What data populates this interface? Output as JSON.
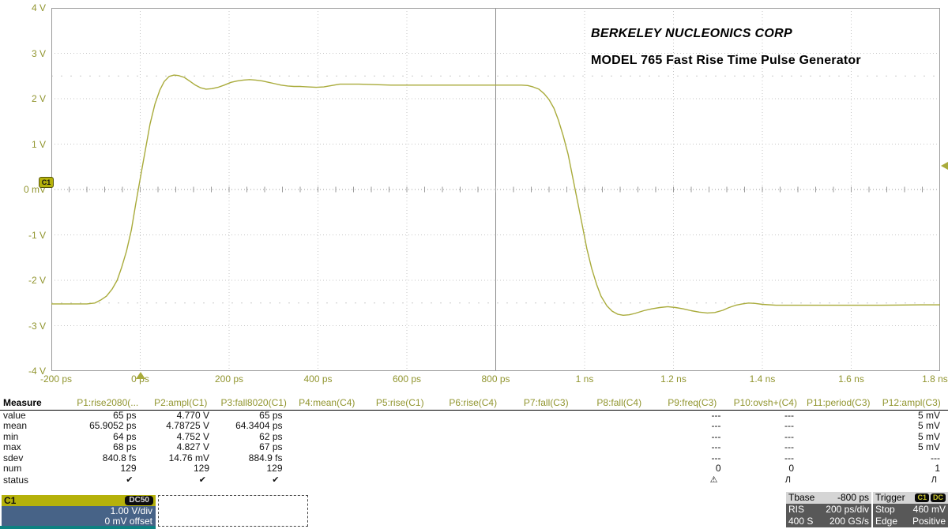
{
  "colors": {
    "trace": "#a9ab3b",
    "axis_label": "#91952f",
    "channel_accent": "#b5b10a",
    "grid_minor": "#c5c5c5",
    "grid_center": "#8a8a8a",
    "channel_body": "#476387",
    "teal_strip": "#0d8181"
  },
  "annotation": {
    "line1": "BERKELEY NUCLEONICS CORP",
    "line2": "MODEL 765 Fast Rise Time Pulse Generator"
  },
  "chart_data": {
    "type": "line",
    "title": "C1 pulse waveform, Berkeley Nucleonics Model 765",
    "x_ticks": [
      "-200 ps",
      "0 ps",
      "200 ps",
      "400 ps",
      "600 ps",
      "800 ps",
      "1 ns",
      "1.2 ns",
      "1.4 ns",
      "1.6 ns",
      "1.8 ns"
    ],
    "y_ticks": [
      "4 V",
      "3 V",
      "2 V",
      "1 V",
      "0 mV",
      "-1 V",
      "-2 V",
      "-3 V",
      "-4 V"
    ],
    "xlim_ps": [
      -200,
      1800
    ],
    "ylim_V": [
      -4,
      4
    ],
    "x_divisions": 10,
    "y_divisions": 8,
    "grid": "dotted",
    "markers": {
      "trigger_time_ps": 0,
      "trigger_level_V": 0.46,
      "channel_zero_label": "C1"
    },
    "series": [
      {
        "name": "C1",
        "points": [
          [
            -200,
            -2.52
          ],
          [
            -120,
            -2.52
          ],
          [
            -102,
            -2.5
          ],
          [
            -88,
            -2.43
          ],
          [
            -76,
            -2.35
          ],
          [
            -63,
            -2.19
          ],
          [
            -52,
            -2.0
          ],
          [
            -42,
            -1.72
          ],
          [
            -31,
            -1.36
          ],
          [
            -20,
            -0.89
          ],
          [
            -10,
            -0.31
          ],
          [
            1,
            0.3
          ],
          [
            12,
            0.9
          ],
          [
            22,
            1.44
          ],
          [
            33,
            1.88
          ],
          [
            44,
            2.19
          ],
          [
            54,
            2.38
          ],
          [
            65,
            2.49
          ],
          [
            76,
            2.52
          ],
          [
            86,
            2.51
          ],
          [
            99,
            2.47
          ],
          [
            111,
            2.39
          ],
          [
            124,
            2.3
          ],
          [
            136,
            2.24
          ],
          [
            148,
            2.21
          ],
          [
            161,
            2.22
          ],
          [
            175,
            2.25
          ],
          [
            189,
            2.3
          ],
          [
            204,
            2.36
          ],
          [
            218,
            2.39
          ],
          [
            232,
            2.41
          ],
          [
            246,
            2.42
          ],
          [
            260,
            2.41
          ],
          [
            275,
            2.39
          ],
          [
            289,
            2.36
          ],
          [
            303,
            2.33
          ],
          [
            317,
            2.3
          ],
          [
            332,
            2.28
          ],
          [
            346,
            2.27
          ],
          [
            360,
            2.27
          ],
          [
            378,
            2.26
          ],
          [
            396,
            2.25
          ],
          [
            413,
            2.26
          ],
          [
            431,
            2.29
          ],
          [
            449,
            2.32
          ],
          [
            467,
            2.32
          ],
          [
            493,
            2.32
          ],
          [
            529,
            2.31
          ],
          [
            564,
            2.3
          ],
          [
            618,
            2.3
          ],
          [
            671,
            2.3
          ],
          [
            724,
            2.3
          ],
          [
            778,
            2.3
          ],
          [
            831,
            2.3
          ],
          [
            858,
            2.3
          ],
          [
            872,
            2.29
          ],
          [
            884,
            2.26
          ],
          [
            897,
            2.21
          ],
          [
            909,
            2.11
          ],
          [
            920,
            1.98
          ],
          [
            931,
            1.79
          ],
          [
            941,
            1.53
          ],
          [
            952,
            1.18
          ],
          [
            963,
            0.77
          ],
          [
            973,
            0.28
          ],
          [
            984,
            -0.26
          ],
          [
            995,
            -0.8
          ],
          [
            1005,
            -1.3
          ],
          [
            1016,
            -1.74
          ],
          [
            1027,
            -2.09
          ],
          [
            1037,
            -2.35
          ],
          [
            1050,
            -2.56
          ],
          [
            1062,
            -2.68
          ],
          [
            1075,
            -2.75
          ],
          [
            1087,
            -2.77
          ],
          [
            1100,
            -2.76
          ],
          [
            1113,
            -2.73
          ],
          [
            1133,
            -2.67
          ],
          [
            1151,
            -2.63
          ],
          [
            1169,
            -2.6
          ],
          [
            1187,
            -2.58
          ],
          [
            1205,
            -2.6
          ],
          [
            1222,
            -2.63
          ],
          [
            1240,
            -2.67
          ],
          [
            1258,
            -2.7
          ],
          [
            1276,
            -2.72
          ],
          [
            1293,
            -2.71
          ],
          [
            1311,
            -2.66
          ],
          [
            1325,
            -2.6
          ],
          [
            1340,
            -2.55
          ],
          [
            1355,
            -2.52
          ],
          [
            1369,
            -2.5
          ],
          [
            1384,
            -2.51
          ],
          [
            1400,
            -2.53
          ],
          [
            1431,
            -2.55
          ],
          [
            1467,
            -2.55
          ],
          [
            1520,
            -2.55
          ],
          [
            1578,
            -2.55
          ],
          [
            1667,
            -2.55
          ],
          [
            1756,
            -2.54
          ],
          [
            1800,
            -2.54
          ]
        ]
      }
    ]
  },
  "measure": {
    "corner_label": "Measure",
    "row_labels": [
      "value",
      "mean",
      "min",
      "max",
      "sdev",
      "num",
      "status"
    ],
    "columns": [
      {
        "label": "P1:rise2080(...",
        "values": [
          "65 ps",
          "65.9052 ps",
          "64 ps",
          "68 ps",
          "840.8 fs",
          "129",
          "✔"
        ]
      },
      {
        "label": "P2:ampl(C1)",
        "values": [
          "4.770 V",
          "4.78725 V",
          "4.752 V",
          "4.827 V",
          "14.76 mV",
          "129",
          "✔"
        ]
      },
      {
        "label": "P3:fall8020(C1)",
        "values": [
          "65 ps",
          "64.3404 ps",
          "62 ps",
          "67 ps",
          "884.9 fs",
          "129",
          "✔"
        ]
      },
      {
        "label": "P4:mean(C4)",
        "values": [
          "",
          "",
          "",
          "",
          "",
          "",
          ""
        ]
      },
      {
        "label": "P5:rise(C1)",
        "values": [
          "",
          "",
          "",
          "",
          "",
          "",
          ""
        ]
      },
      {
        "label": "P6:rise(C4)",
        "values": [
          "",
          "",
          "",
          "",
          "",
          "",
          ""
        ]
      },
      {
        "label": "P7:fall(C3)",
        "values": [
          "",
          "",
          "",
          "",
          "",
          "",
          ""
        ]
      },
      {
        "label": "P8:fall(C4)",
        "values": [
          "",
          "",
          "",
          "",
          "",
          "",
          ""
        ]
      },
      {
        "label": "P9:freq(C3)",
        "values": [
          "---",
          "---",
          "---",
          "---",
          "---",
          "0",
          "⚠"
        ]
      },
      {
        "label": "P10:ovsh+(C4)",
        "values": [
          "---",
          "---",
          "---",
          "---",
          "---",
          "0",
          "Л"
        ]
      },
      {
        "label": "P11:period(C3)",
        "values": [
          "",
          "",
          "",
          "",
          "",
          "",
          ""
        ]
      },
      {
        "label": "P12:ampl(C3)",
        "values": [
          "5 mV",
          "5 mV",
          "5 mV",
          "5 mV",
          "---",
          "1",
          "Л"
        ]
      }
    ]
  },
  "channel_box": {
    "name": "C1",
    "coupling": "DC50",
    "scale": "1.00 V/div",
    "offset": "0 mV offset"
  },
  "timebase_box": {
    "label": "Tbase",
    "delay": "-800 ps",
    "mode": "RIS",
    "scale": "200 ps/div",
    "samples": "400 S",
    "rate": "200 GS/s"
  },
  "trigger_box": {
    "label": "Trigger",
    "source": "C1",
    "coupling": "DC",
    "mode": "Stop",
    "level": "460 mV",
    "type": "Edge",
    "slope": "Positive"
  }
}
